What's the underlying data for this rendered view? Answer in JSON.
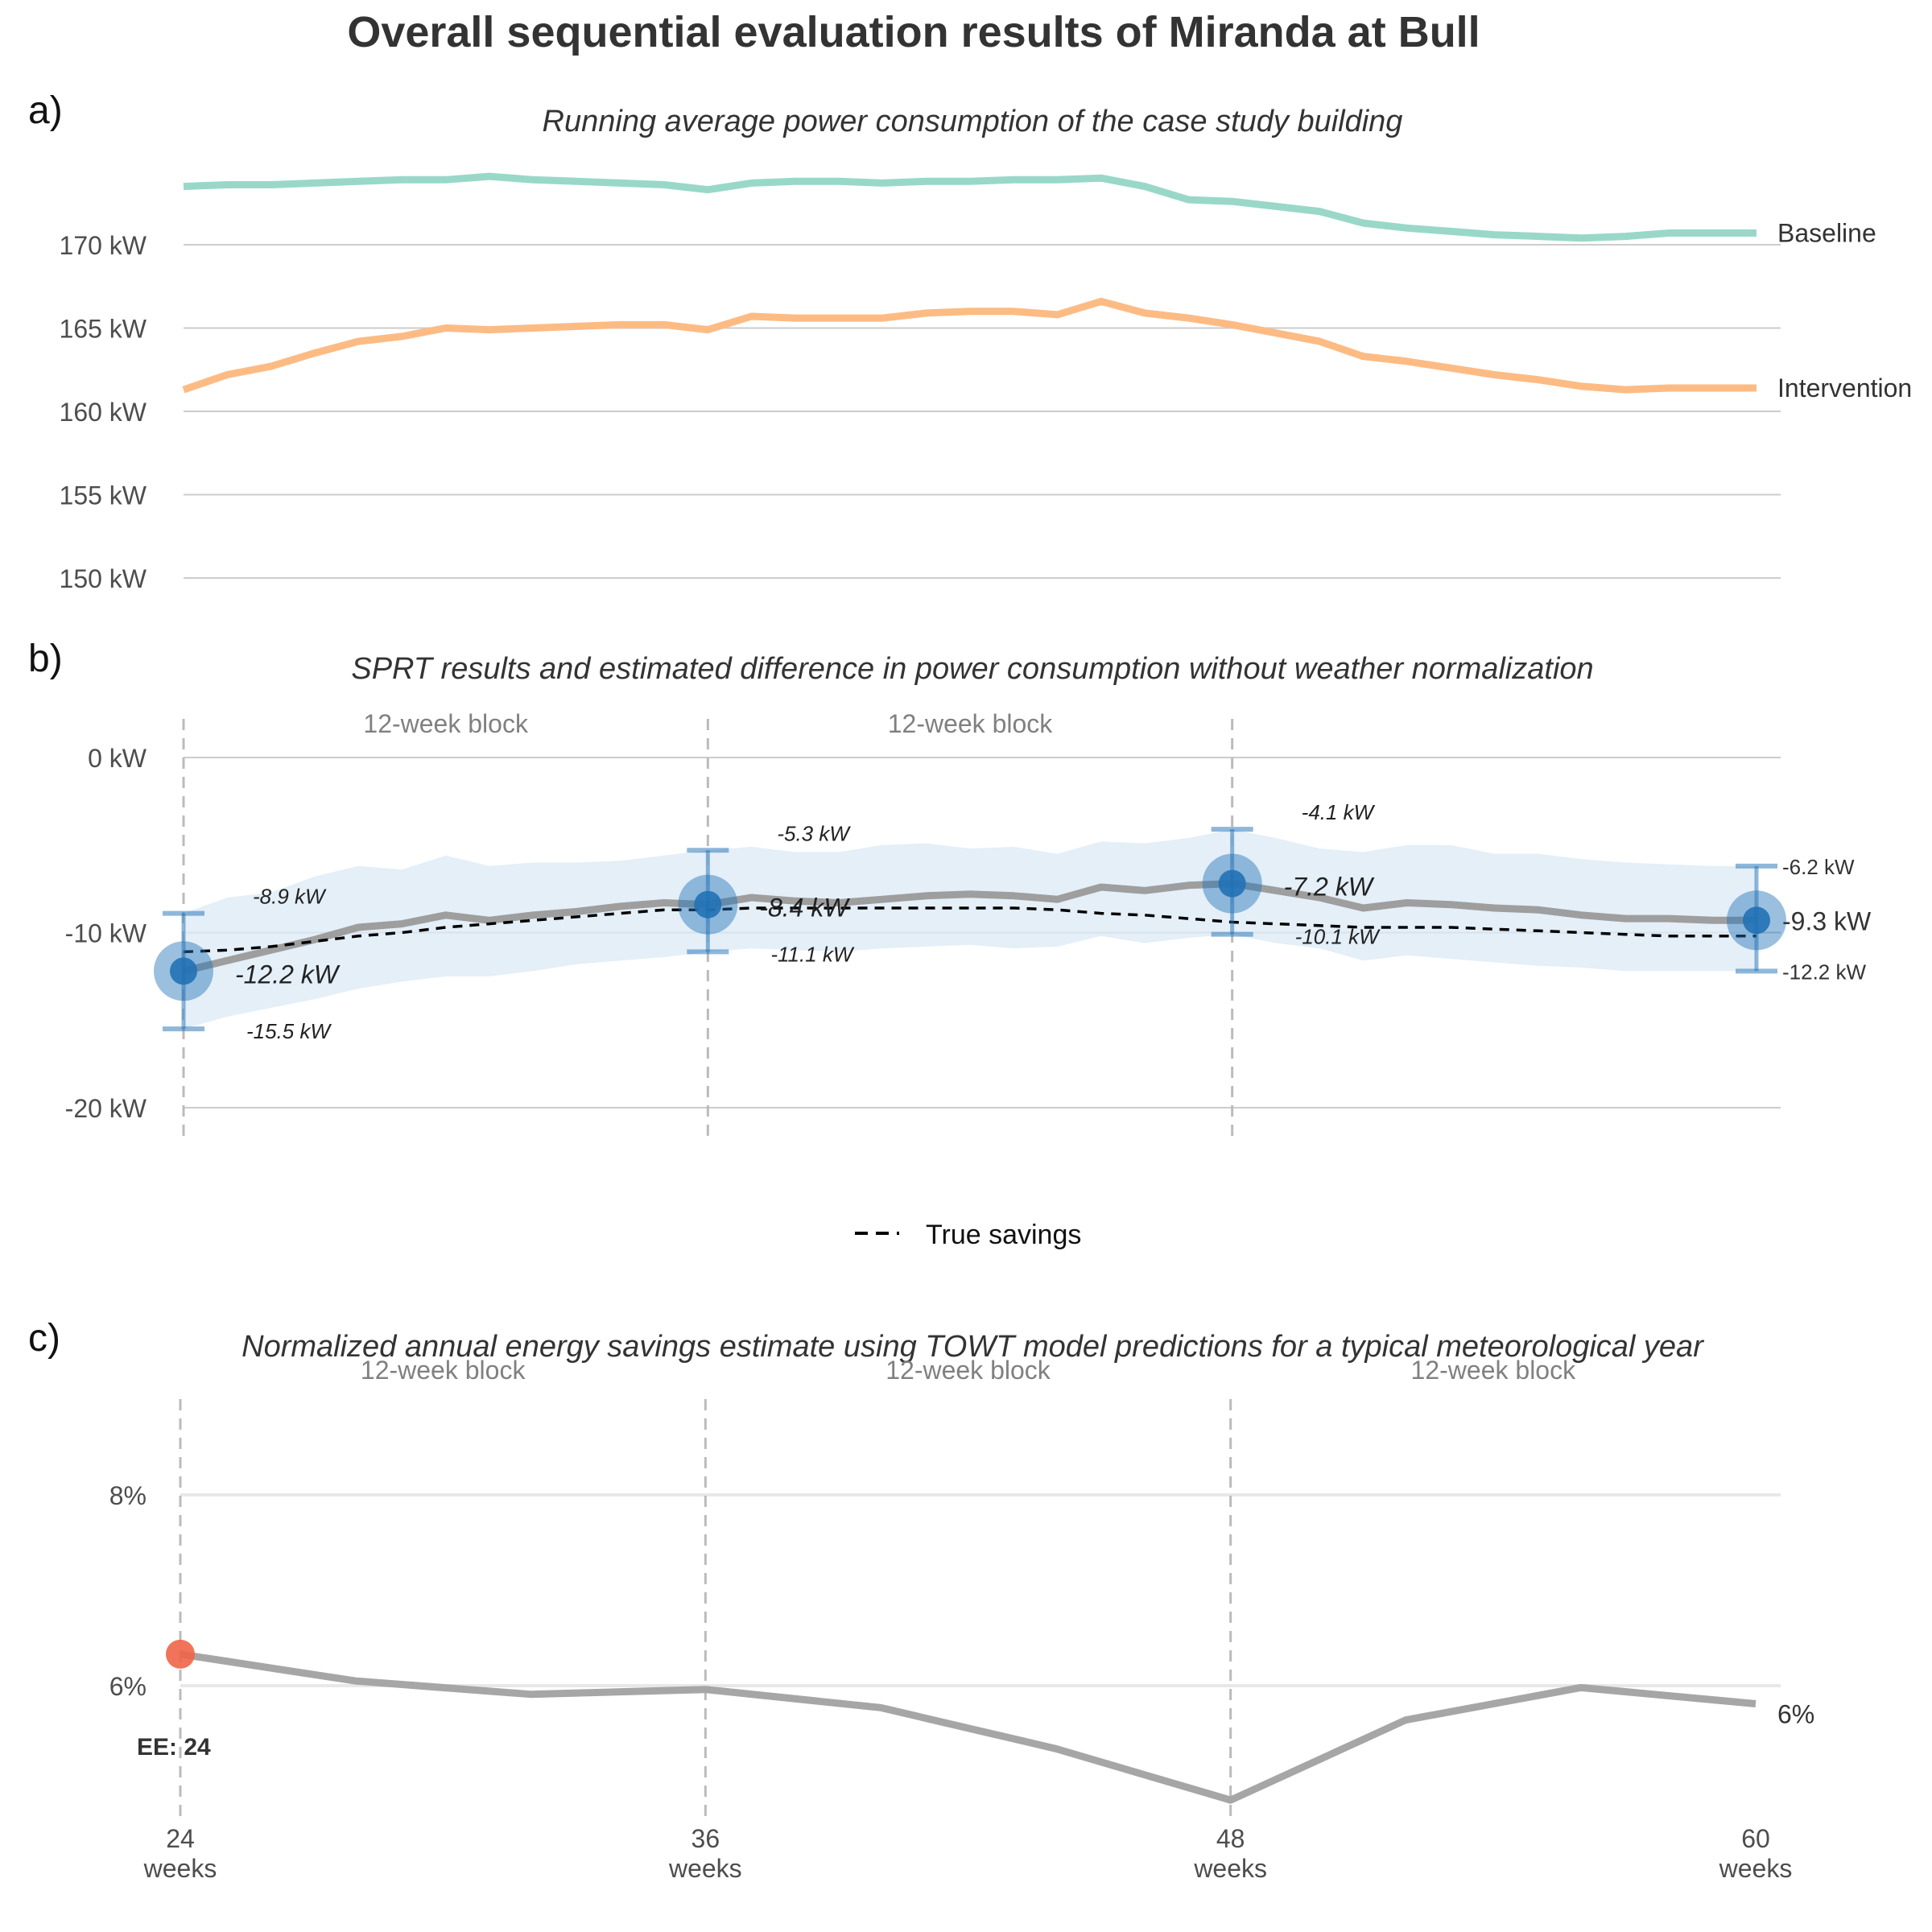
{
  "title": "Overall sequential evaluation results of Miranda at Bull",
  "colors": {
    "baseline": "#99d8c9",
    "intervention": "#fdbb84",
    "estimate_line": "#9e9e9e",
    "ci_ribbon": "#dbe9f6",
    "point": "#2171b5",
    "true_savings": "#000000",
    "grid": "#cccccc",
    "vline": "#bbbbbb",
    "block_label": "#808080",
    "ee_point": "#ef6548"
  },
  "x_axis": {
    "ticks": [
      24,
      36,
      48,
      60
    ],
    "tick_labels": [
      "24",
      "36",
      "48",
      "60"
    ],
    "tick_sublabel": "weeks"
  },
  "chart_data": [
    {
      "panel": "a)",
      "type": "line",
      "title": "Running average power consumption of the case study building",
      "ylim": [
        148,
        176
      ],
      "yticks": [
        150,
        155,
        160,
        165,
        170
      ],
      "ytick_labels": [
        "150 kW",
        "155 kW",
        "160 kW",
        "165 kW",
        "170 kW"
      ],
      "grid": true,
      "x": [
        24,
        25,
        26,
        27,
        28,
        29,
        30,
        31,
        32,
        33,
        34,
        35,
        36,
        37,
        38,
        39,
        40,
        41,
        42,
        43,
        44,
        45,
        46,
        47,
        48,
        49,
        50,
        51,
        52,
        53,
        54,
        55,
        56,
        57,
        58,
        59,
        60
      ],
      "series": [
        {
          "name": "Baseline",
          "values": [
            173.5,
            173.6,
            173.6,
            173.7,
            173.8,
            173.9,
            173.9,
            174.1,
            173.9,
            173.8,
            173.7,
            173.6,
            173.3,
            173.7,
            173.8,
            173.8,
            173.7,
            173.8,
            173.8,
            173.9,
            173.9,
            174.0,
            173.5,
            172.7,
            172.6,
            172.3,
            172.0,
            171.3,
            171.0,
            170.8,
            170.6,
            170.5,
            170.4,
            170.5,
            170.7,
            170.7,
            170.7
          ],
          "end_label": "Baseline"
        },
        {
          "name": "Intervention",
          "values": [
            161.3,
            162.2,
            162.7,
            163.5,
            164.2,
            164.5,
            165.0,
            164.9,
            165.0,
            165.1,
            165.2,
            165.2,
            164.9,
            165.7,
            165.6,
            165.6,
            165.6,
            165.9,
            166.0,
            166.0,
            165.8,
            166.6,
            165.9,
            165.6,
            165.2,
            164.7,
            164.2,
            163.3,
            163.0,
            162.6,
            162.2,
            161.9,
            161.5,
            161.3,
            161.4,
            161.4,
            161.4
          ],
          "end_label": "Intervention"
        }
      ]
    },
    {
      "panel": "b)",
      "type": "line",
      "title": "SPRT results and estimated difference in power consumption without weather normalization",
      "ylim": [
        -22,
        3
      ],
      "yticks": [
        0,
        -10,
        -20
      ],
      "ytick_labels": [
        "0 kW",
        "-10 kW",
        "-20 kW"
      ],
      "grid": true,
      "x": [
        24,
        25,
        26,
        27,
        28,
        29,
        30,
        31,
        32,
        33,
        34,
        35,
        36,
        37,
        38,
        39,
        40,
        41,
        42,
        43,
        44,
        45,
        46,
        47,
        48,
        49,
        50,
        51,
        52,
        53,
        54,
        55,
        56,
        57,
        58,
        59,
        60
      ],
      "estimate": [
        -12.2,
        -11.6,
        -11.0,
        -10.4,
        -9.7,
        -9.5,
        -9.0,
        -9.3,
        -9.0,
        -8.8,
        -8.5,
        -8.3,
        -8.4,
        -8.0,
        -8.2,
        -8.3,
        -8.1,
        -7.9,
        -7.8,
        -7.9,
        -8.1,
        -7.4,
        -7.6,
        -7.3,
        -7.2,
        -7.6,
        -8.0,
        -8.6,
        -8.3,
        -8.4,
        -8.6,
        -8.7,
        -9.0,
        -9.2,
        -9.2,
        -9.3,
        -9.3
      ],
      "ci_upper": [
        -8.9,
        -8.0,
        -7.7,
        -6.8,
        -6.2,
        -6.4,
        -5.6,
        -6.2,
        -6.0,
        -6.0,
        -5.9,
        -5.6,
        -5.3,
        -5.1,
        -5.4,
        -5.4,
        -5.0,
        -4.9,
        -5.2,
        -5.1,
        -5.5,
        -4.8,
        -4.9,
        -4.6,
        -4.1,
        -4.6,
        -5.2,
        -5.4,
        -5.0,
        -5.0,
        -5.5,
        -5.5,
        -5.8,
        -6.0,
        -6.1,
        -6.2,
        -6.2
      ],
      "ci_lower": [
        -15.5,
        -14.8,
        -14.3,
        -13.8,
        -13.2,
        -12.8,
        -12.5,
        -12.5,
        -12.2,
        -11.8,
        -11.6,
        -11.4,
        -11.1,
        -10.9,
        -11.0,
        -11.1,
        -10.9,
        -10.8,
        -10.7,
        -10.9,
        -10.8,
        -10.2,
        -10.6,
        -10.3,
        -10.1,
        -10.6,
        -10.9,
        -11.6,
        -11.3,
        -11.5,
        -11.7,
        -11.9,
        -12.0,
        -12.2,
        -12.2,
        -12.2,
        -12.2
      ],
      "true_savings": [
        -11.1,
        -11.0,
        -10.8,
        -10.5,
        -10.2,
        -10.0,
        -9.7,
        -9.5,
        -9.3,
        -9.1,
        -8.9,
        -8.7,
        -8.7,
        -8.6,
        -8.6,
        -8.6,
        -8.6,
        -8.6,
        -8.6,
        -8.6,
        -8.7,
        -8.9,
        -9.0,
        -9.2,
        -9.4,
        -9.5,
        -9.6,
        -9.7,
        -9.7,
        -9.7,
        -9.8,
        -9.9,
        -10.0,
        -10.1,
        -10.2,
        -10.2,
        -10.2
      ],
      "evaluation_points": [
        {
          "x": 24,
          "estimate": -12.2,
          "upper": -8.9,
          "lower": -15.5,
          "estimate_label": "-12.2 kW",
          "upper_label": "-8.9 kW",
          "lower_label": "-15.5 kW"
        },
        {
          "x": 36,
          "estimate": -8.4,
          "upper": -5.3,
          "lower": -11.1,
          "estimate_label": "-8.4 kW",
          "upper_label": "-5.3 kW",
          "lower_label": "-11.1 kW"
        },
        {
          "x": 48,
          "estimate": -7.2,
          "upper": -4.1,
          "lower": -10.1,
          "estimate_label": "-7.2 kW",
          "upper_label": "-4.1 kW",
          "lower_label": "-10.1 kW"
        },
        {
          "x": 60,
          "estimate": -9.3,
          "upper": -6.2,
          "lower": -12.2,
          "estimate_label": "-9.3 kW",
          "upper_label": "-6.2 kW",
          "lower_label": "-12.2 kW"
        }
      ],
      "block_labels": [
        "12-week block",
        "12-week block"
      ],
      "legend": {
        "position": "bottom",
        "entries": [
          "True savings"
        ]
      }
    },
    {
      "panel": "c)",
      "type": "line",
      "title": "Normalized annual energy savings estimate using TOWT model predictions for a typical meteorological year",
      "ylim": [
        4.2,
        9.6
      ],
      "yticks": [
        6,
        8
      ],
      "ytick_labels": [
        "6%",
        "8%"
      ],
      "grid": true,
      "x": [
        24,
        28,
        32,
        36,
        40,
        44,
        48,
        52,
        56,
        60
      ],
      "values": [
        6.33,
        6.05,
        5.91,
        5.96,
        5.77,
        5.34,
        4.8,
        5.64,
        5.98,
        5.81
      ],
      "end_label": "6%",
      "early_end": {
        "x": 24,
        "value": 6.33,
        "label": "EE: 24"
      },
      "block_labels": [
        "12-week block",
        "12-week block",
        "12-week block"
      ]
    }
  ]
}
